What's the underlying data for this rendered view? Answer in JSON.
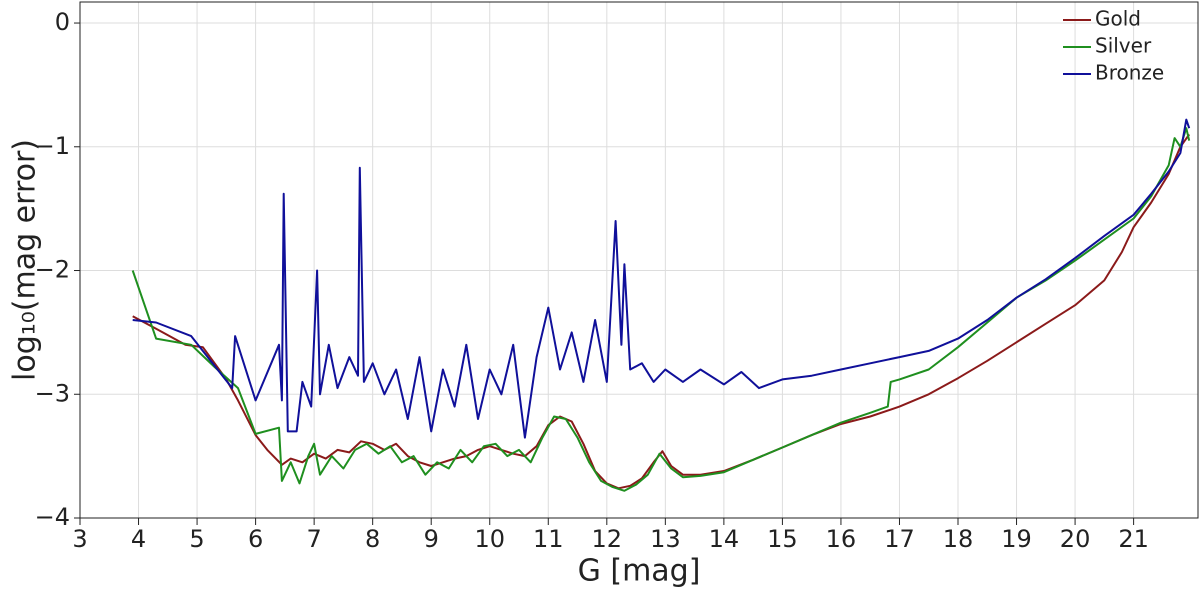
{
  "chart_data": {
    "type": "line",
    "xlabel": "G [mag]",
    "ylabel": "log₁₀(mag error)",
    "xlim": [
      3,
      22.1
    ],
    "ylim": [
      -4,
      0.17
    ],
    "xticks": [
      3,
      4,
      5,
      6,
      7,
      8,
      9,
      10,
      11,
      12,
      13,
      14,
      15,
      16,
      17,
      18,
      19,
      20,
      21
    ],
    "yticks": [
      {
        "value": -4,
        "label": "−4"
      },
      {
        "value": -3,
        "label": "−3"
      },
      {
        "value": -2,
        "label": "−2"
      },
      {
        "value": -1,
        "label": "−1"
      },
      0
    ],
    "grid": true,
    "legend": "upper right",
    "series": [
      {
        "name": "Gold",
        "color": "#8b1a1a",
        "x": [
          3.9,
          4.3,
          4.8,
          5.1,
          5.5,
          5.7,
          6.0,
          6.2,
          6.45,
          6.6,
          6.8,
          7.0,
          7.2,
          7.4,
          7.6,
          7.8,
          8.0,
          8.2,
          8.4,
          8.6,
          8.8,
          9.0,
          9.2,
          9.4,
          9.6,
          9.8,
          10.0,
          10.2,
          10.4,
          10.6,
          10.8,
          11.0,
          11.2,
          11.4,
          11.6,
          11.8,
          12.0,
          12.2,
          12.4,
          12.6,
          12.8,
          12.95,
          13.1,
          13.3,
          13.6,
          14.0,
          14.5,
          15.0,
          15.5,
          16.0,
          16.5,
          17.0,
          17.5,
          18.0,
          18.5,
          19.0,
          19.5,
          20.0,
          20.5,
          20.8,
          21.0,
          21.3,
          21.6,
          21.8,
          21.95
        ],
        "values": [
          -2.37,
          -2.47,
          -2.6,
          -2.62,
          -2.88,
          -3.05,
          -3.33,
          -3.45,
          -3.57,
          -3.52,
          -3.55,
          -3.48,
          -3.52,
          -3.45,
          -3.47,
          -3.38,
          -3.4,
          -3.45,
          -3.4,
          -3.5,
          -3.55,
          -3.58,
          -3.55,
          -3.52,
          -3.5,
          -3.45,
          -3.42,
          -3.45,
          -3.48,
          -3.5,
          -3.42,
          -3.25,
          -3.18,
          -3.22,
          -3.4,
          -3.62,
          -3.72,
          -3.76,
          -3.74,
          -3.68,
          -3.55,
          -3.46,
          -3.58,
          -3.65,
          -3.65,
          -3.62,
          -3.53,
          -3.43,
          -3.33,
          -3.24,
          -3.18,
          -3.1,
          -3.0,
          -2.87,
          -2.73,
          -2.58,
          -2.43,
          -2.28,
          -2.08,
          -1.85,
          -1.65,
          -1.45,
          -1.22,
          -1.0,
          -0.9
        ]
      },
      {
        "name": "Silver",
        "color": "#1f8f1f",
        "x": [
          3.9,
          4.3,
          4.9,
          5.3,
          5.7,
          6.0,
          6.4,
          6.45,
          6.6,
          6.75,
          6.9,
          7.0,
          7.1,
          7.3,
          7.5,
          7.7,
          7.9,
          8.1,
          8.3,
          8.5,
          8.7,
          8.9,
          9.1,
          9.3,
          9.5,
          9.7,
          9.9,
          10.1,
          10.3,
          10.5,
          10.7,
          10.9,
          11.1,
          11.3,
          11.5,
          11.7,
          11.9,
          12.1,
          12.3,
          12.5,
          12.7,
          12.9,
          13.1,
          13.3,
          13.6,
          14.0,
          14.5,
          15.0,
          15.5,
          16.0,
          16.5,
          16.8,
          16.85,
          17.0,
          17.5,
          18.0,
          18.5,
          19.0,
          19.5,
          20.0,
          20.5,
          21.0,
          21.3,
          21.6,
          21.7,
          21.8,
          21.9,
          21.95
        ],
        "values": [
          -2.0,
          -2.55,
          -2.6,
          -2.78,
          -2.95,
          -3.32,
          -3.27,
          -3.7,
          -3.55,
          -3.72,
          -3.5,
          -3.4,
          -3.65,
          -3.5,
          -3.6,
          -3.45,
          -3.4,
          -3.48,
          -3.42,
          -3.55,
          -3.5,
          -3.65,
          -3.55,
          -3.6,
          -3.45,
          -3.55,
          -3.42,
          -3.4,
          -3.5,
          -3.45,
          -3.55,
          -3.35,
          -3.18,
          -3.2,
          -3.35,
          -3.55,
          -3.7,
          -3.75,
          -3.78,
          -3.73,
          -3.65,
          -3.48,
          -3.6,
          -3.67,
          -3.66,
          -3.63,
          -3.53,
          -3.43,
          -3.33,
          -3.23,
          -3.15,
          -3.1,
          -2.9,
          -2.88,
          -2.8,
          -2.62,
          -2.42,
          -2.22,
          -2.08,
          -1.92,
          -1.75,
          -1.58,
          -1.4,
          -1.15,
          -0.93,
          -1.0,
          -0.85,
          -0.95
        ]
      },
      {
        "name": "Bronze",
        "color": "#10109a",
        "x": [
          3.9,
          4.3,
          4.9,
          5.6,
          5.65,
          6.0,
          6.4,
          6.45,
          6.48,
          6.55,
          6.7,
          6.8,
          6.95,
          7.05,
          7.1,
          7.25,
          7.4,
          7.6,
          7.75,
          7.78,
          7.85,
          8.0,
          8.2,
          8.4,
          8.6,
          8.8,
          9.0,
          9.2,
          9.4,
          9.6,
          9.8,
          10.0,
          10.2,
          10.4,
          10.6,
          10.8,
          11.0,
          11.2,
          11.4,
          11.6,
          11.8,
          12.0,
          12.15,
          12.25,
          12.3,
          12.4,
          12.6,
          12.8,
          13.0,
          13.3,
          13.6,
          14.0,
          14.3,
          14.6,
          15.0,
          15.5,
          16.0,
          16.5,
          17.0,
          17.5,
          18.0,
          18.5,
          19.0,
          19.5,
          20.0,
          20.5,
          21.0,
          21.3,
          21.6,
          21.8,
          21.9,
          21.95
        ],
        "values": [
          -2.4,
          -2.42,
          -2.53,
          -2.95,
          -2.53,
          -3.05,
          -2.6,
          -3.05,
          -1.38,
          -3.3,
          -3.3,
          -2.9,
          -3.1,
          -2.0,
          -3.0,
          -2.6,
          -2.95,
          -2.7,
          -2.85,
          -1.17,
          -2.9,
          -2.75,
          -3.0,
          -2.8,
          -3.2,
          -2.7,
          -3.3,
          -2.8,
          -3.1,
          -2.6,
          -3.2,
          -2.8,
          -3.0,
          -2.6,
          -3.35,
          -2.7,
          -2.3,
          -2.8,
          -2.5,
          -2.9,
          -2.4,
          -2.9,
          -1.6,
          -2.6,
          -1.95,
          -2.8,
          -2.75,
          -2.9,
          -2.8,
          -2.9,
          -2.8,
          -2.92,
          -2.82,
          -2.95,
          -2.88,
          -2.85,
          -2.8,
          -2.75,
          -2.7,
          -2.65,
          -2.55,
          -2.4,
          -2.22,
          -2.07,
          -1.9,
          -1.72,
          -1.55,
          -1.38,
          -1.2,
          -1.05,
          -0.78,
          -0.85
        ]
      }
    ]
  }
}
